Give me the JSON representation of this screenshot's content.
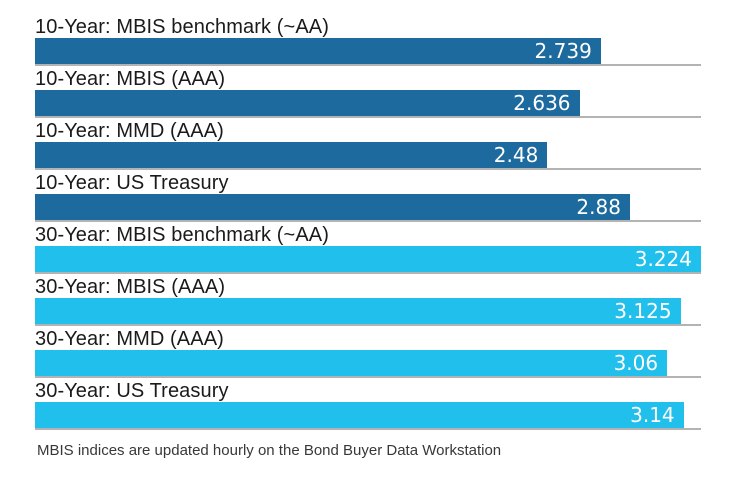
{
  "chart_data": {
    "type": "bar",
    "orientation": "horizontal",
    "title": "",
    "xlabel": "",
    "ylabel": "",
    "grid": "off",
    "legend_position": "none",
    "xlim": [
      0,
      3.224
    ],
    "categories": [
      "10-Year: MBIS benchmark (~AA)",
      "10-Year: MBIS (AAA)",
      "10-Year: MMD (AAA)",
      "10-Year: US Treasury",
      "30-Year: MBIS benchmark (~AA)",
      "30-Year: MBIS (AAA)",
      "30-Year: MMD (AAA)",
      "30-Year: US Treasury"
    ],
    "values": [
      2.739,
      2.636,
      2.48,
      2.88,
      3.224,
      3.125,
      3.06,
      3.14
    ],
    "display_values": [
      "2.739",
      "2.636",
      "2.48",
      "2.88",
      "3.224",
      "3.125",
      "3.06",
      "3.14"
    ],
    "groups": [
      "10-year",
      "10-year",
      "10-year",
      "10-year",
      "30-year",
      "30-year",
      "30-year",
      "30-year"
    ],
    "bar_colors": {
      "10-year": "#1d6a9e",
      "30-year": "#21bfec"
    },
    "value_label_color": "#ffffff",
    "baseline_color": "#b3b3b3",
    "label_color": "#1a1a1a",
    "footnote": "MBIS indices are updated hourly on the Bond Buyer Data Workstation"
  }
}
